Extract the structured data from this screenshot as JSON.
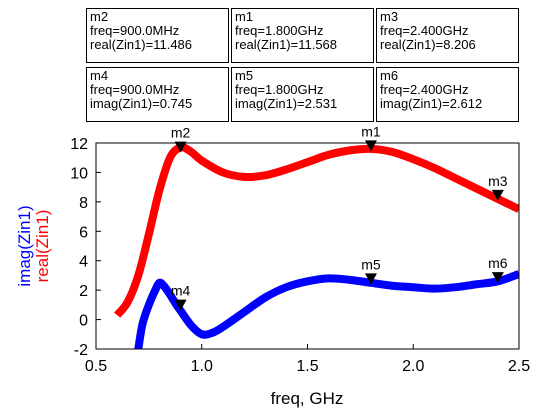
{
  "chart_data": {
    "type": "line",
    "xlabel": "freq, GHz",
    "ylabel_imag": "imag(Zin1)",
    "ylabel_real": "real(Zin1)",
    "xlim": [
      0.5,
      2.5
    ],
    "ylim": [
      -2,
      12
    ],
    "x_ticks": [
      "0.5",
      "1.0",
      "1.5",
      "2.0",
      "2.5"
    ],
    "y_ticks": [
      "-2",
      "0",
      "2",
      "4",
      "6",
      "8",
      "10",
      "12"
    ],
    "grid": false,
    "series": [
      {
        "name": "real(Zin1)",
        "color": "#ff0000",
        "x": [
          0.6,
          0.65,
          0.7,
          0.75,
          0.8,
          0.85,
          0.9,
          0.95,
          1.0,
          1.1,
          1.2,
          1.3,
          1.4,
          1.5,
          1.6,
          1.7,
          1.8,
          1.9,
          2.0,
          2.1,
          2.2,
          2.3,
          2.4,
          2.5
        ],
        "values": [
          0.3,
          1.2,
          3.0,
          5.8,
          8.8,
          11.0,
          11.7,
          11.4,
          10.8,
          10.0,
          9.7,
          9.8,
          10.2,
          10.7,
          11.2,
          11.5,
          11.6,
          11.4,
          10.9,
          10.3,
          9.6,
          8.9,
          8.2,
          7.5
        ]
      },
      {
        "name": "imag(Zin1)",
        "color": "#0000ff",
        "x": [
          0.7,
          0.72,
          0.75,
          0.78,
          0.8,
          0.82,
          0.85,
          0.88,
          0.9,
          0.95,
          1.0,
          1.05,
          1.1,
          1.2,
          1.3,
          1.4,
          1.5,
          1.6,
          1.7,
          1.8,
          1.9,
          2.0,
          2.1,
          2.2,
          2.3,
          2.4,
          2.5
        ],
        "values": [
          -2.0,
          -0.3,
          1.0,
          2.0,
          2.5,
          2.3,
          1.7,
          1.0,
          0.6,
          -0.4,
          -1.0,
          -0.9,
          -0.5,
          0.5,
          1.5,
          2.2,
          2.6,
          2.8,
          2.7,
          2.5,
          2.3,
          2.2,
          2.1,
          2.2,
          2.4,
          2.6,
          3.1
        ]
      }
    ],
    "markers": [
      {
        "id": "m1",
        "series": "real(Zin1)",
        "x": 1.8,
        "y": 11.568,
        "line1": "m1",
        "line2": "freq=1.800GHz",
        "line3": "real(Zin1)=11.568"
      },
      {
        "id": "m2",
        "series": "real(Zin1)",
        "x": 0.9,
        "y": 11.486,
        "line1": "m2",
        "line2": "freq=900.0MHz",
        "line3": "real(Zin1)=11.486"
      },
      {
        "id": "m3",
        "series": "real(Zin1)",
        "x": 2.4,
        "y": 8.206,
        "line1": "m3",
        "line2": "freq=2.400GHz",
        "line3": "real(Zin1)=8.206"
      },
      {
        "id": "m4",
        "series": "imag(Zin1)",
        "x": 0.9,
        "y": 0.745,
        "line1": "m4",
        "line2": "freq=900.0MHz",
        "line3": "imag(Zin1)=0.745"
      },
      {
        "id": "m5",
        "series": "imag(Zin1)",
        "x": 1.8,
        "y": 2.531,
        "line1": "m5",
        "line2": "freq=1.800GHz",
        "line3": "imag(Zin1)=2.531"
      },
      {
        "id": "m6",
        "series": "imag(Zin1)",
        "x": 2.4,
        "y": 2.612,
        "line1": "m6",
        "line2": "freq=2.400GHz",
        "line3": "imag(Zin1)=2.612"
      }
    ]
  }
}
